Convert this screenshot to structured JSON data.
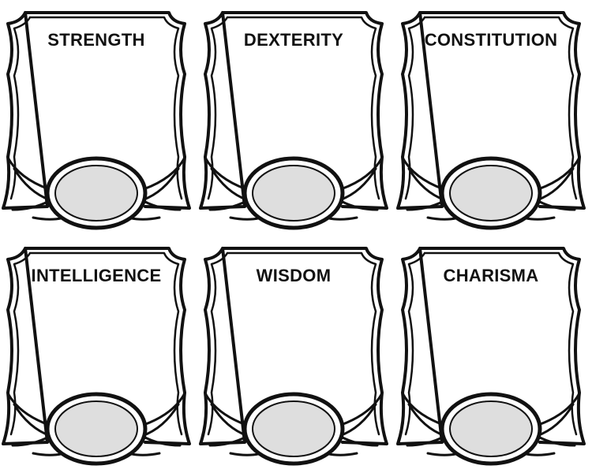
{
  "stats": [
    {
      "label": "STRENGTH"
    },
    {
      "label": "DEXTERITY"
    },
    {
      "label": "CONSTITUTION"
    },
    {
      "label": "INTELLIGENCE"
    },
    {
      "label": "WISDOM"
    },
    {
      "label": "CHARISMA"
    }
  ],
  "colors": {
    "ink": "#111111",
    "oval_fill": "#dedede",
    "background": "#ffffff"
  }
}
